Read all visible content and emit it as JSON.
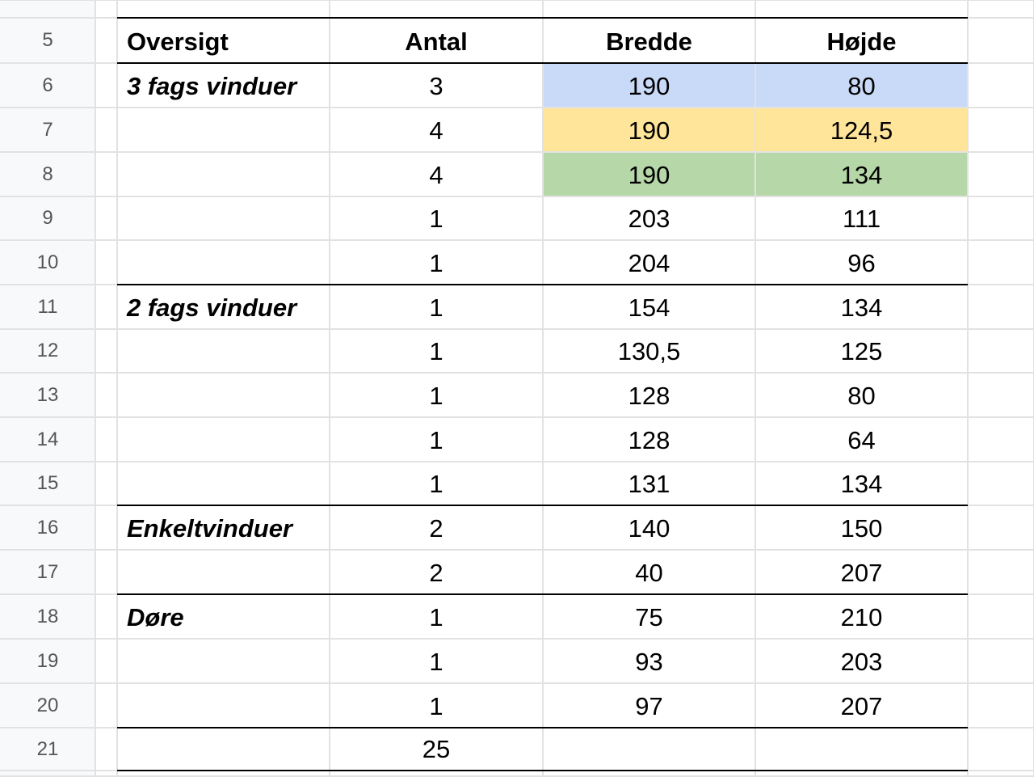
{
  "row_numbers": [
    "5",
    "6",
    "7",
    "8",
    "9",
    "10",
    "11",
    "12",
    "13",
    "14",
    "15",
    "16",
    "17",
    "18",
    "19",
    "20",
    "21"
  ],
  "table": {
    "header": [
      "Oversigt",
      "Antal",
      "Bredde",
      "Højde"
    ],
    "rows": [
      [
        "3 fags vinduer",
        "3",
        "190",
        "80"
      ],
      [
        null,
        "4",
        "190",
        "124,5"
      ],
      [
        null,
        "4",
        "190",
        "134"
      ],
      [
        null,
        "1",
        "203",
        "111"
      ],
      [
        null,
        "1",
        "204",
        "96"
      ],
      [
        "2 fags vinduer",
        "1",
        "154",
        "134"
      ],
      [
        null,
        "1",
        "130,5",
        "125"
      ],
      [
        null,
        "1",
        "128",
        "80"
      ],
      [
        null,
        "1",
        "128",
        "64"
      ],
      [
        null,
        "1",
        "131",
        "134"
      ],
      [
        "Enkeltvinduer",
        "2",
        "140",
        "150"
      ],
      [
        null,
        "2",
        "40",
        "207"
      ],
      [
        "Døre",
        "1",
        "75",
        "210"
      ],
      [
        null,
        "1",
        "93",
        "203"
      ],
      [
        null,
        "1",
        "97",
        "207"
      ],
      [
        null,
        "25",
        null,
        null
      ]
    ]
  }
}
